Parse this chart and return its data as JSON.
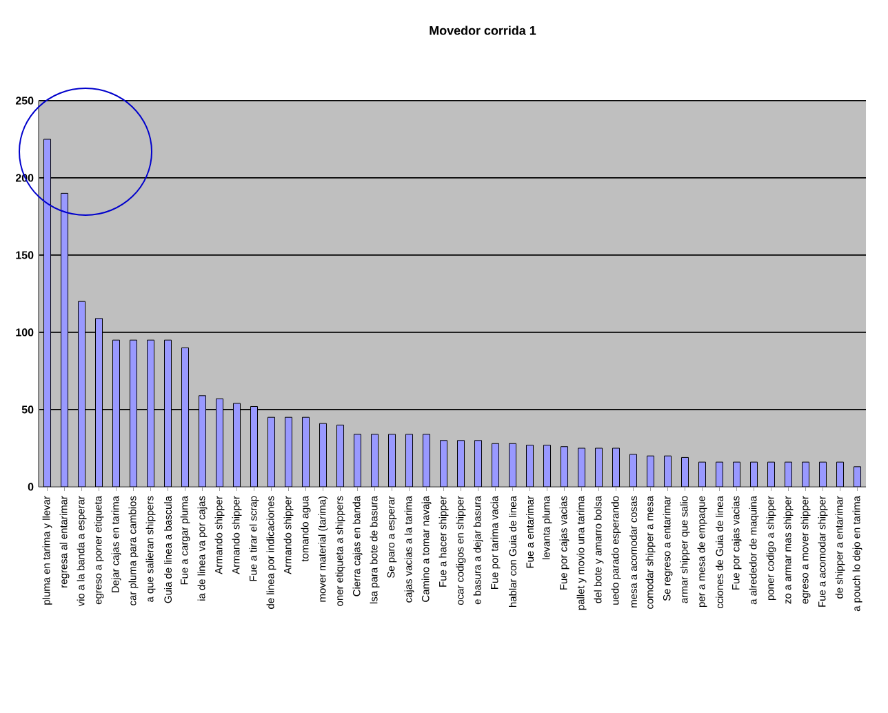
{
  "chart_data": {
    "type": "bar",
    "title": "Movedor corrida 1",
    "categories": [
      "pluma en tarima y llevar",
      "regresa al entarimar",
      "vio a la banda a esperar",
      "egreso a poner etiqueta",
      "Dejar cajas en tarima",
      "car pluma para cambios",
      "a que salieran shippers",
      "Guia de linea a bascula",
      "Fue a cargar pluma",
      "ia de linea va por cajas",
      "Armando shipper",
      "Armando shipper",
      "Fue a tirar el scrap",
      "de linea por indicaciones",
      "Armando shipper",
      "tomando agua",
      "mover material (tarima)",
      "oner etiqueta a shippers",
      "Cierra cajas en banda",
      "lsa para bote de basura",
      "Se paro a esperar",
      "cajas vacias a la tarima",
      "Camino a tomar navaja",
      "Fue a hacer shipper",
      "ocar codigos en shipper",
      "e basura a dejar basura",
      "Fue por tarima vacia",
      "hablar con Guia de linea",
      "Fue a entarimar",
      "levanta pluma",
      "Fue por cajas vacias",
      "pallet y movio una tarima",
      "del bote y amarro bolsa",
      "uedo parado esperando",
      "mesa a acomodar cosas",
      "comodar shipper a mesa",
      "Se regreso a entarimar",
      "armar shipper que salio",
      "per a mesa de empaque",
      "cciones de Guia de linea",
      "Fue por cajas vacias",
      "a alrededor de maquina",
      "poner codigo a shipper",
      "zo a armar mas shipper",
      "egreso a mover shipper",
      "Fue a acomodar shipper",
      "de shipper a entarimar",
      "a pouch lo dejo en tarima"
    ],
    "values": [
      225,
      190,
      120,
      109,
      95,
      95,
      95,
      95,
      90,
      59,
      57,
      54,
      52,
      45,
      45,
      45,
      41,
      40,
      34,
      34,
      34,
      34,
      34,
      30,
      30,
      30,
      28,
      28,
      27,
      27,
      26,
      25,
      25,
      25,
      21,
      20,
      20,
      19,
      16,
      16,
      16,
      16,
      16,
      16,
      16,
      16,
      16,
      13
    ],
    "color": "#9999ff",
    "ylim": [
      0,
      250
    ],
    "yticks": [
      0,
      50,
      100,
      150,
      200,
      250
    ],
    "grid": "y"
  }
}
